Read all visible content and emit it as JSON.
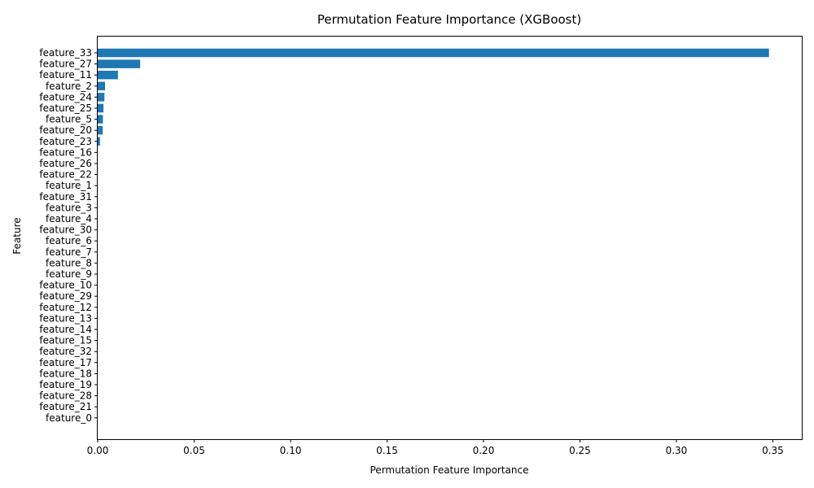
{
  "chart_data": {
    "type": "bar",
    "orientation": "horizontal",
    "title": "Permutation Feature Importance (XGBoost)",
    "xlabel": "Permutation Feature Importance",
    "ylabel": "Feature",
    "xlim": [
      0,
      0.365
    ],
    "xticks": [
      "0.00",
      "0.05",
      "0.10",
      "0.15",
      "0.20",
      "0.25",
      "0.30",
      "0.35"
    ],
    "xtick_values": [
      0,
      0.05,
      0.1,
      0.15,
      0.2,
      0.25,
      0.3,
      0.35
    ],
    "color": "#1f77b4",
    "categories": [
      "feature_33",
      "feature_27",
      "feature_11",
      "feature_2",
      "feature_24",
      "feature_25",
      "feature_5",
      "feature_20",
      "feature_23",
      "feature_16",
      "feature_26",
      "feature_22",
      "feature_1",
      "feature_31",
      "feature_3",
      "feature_4",
      "feature_30",
      "feature_6",
      "feature_7",
      "feature_8",
      "feature_9",
      "feature_10",
      "feature_29",
      "feature_12",
      "feature_13",
      "feature_14",
      "feature_15",
      "feature_32",
      "feature_17",
      "feature_18",
      "feature_19",
      "feature_28",
      "feature_21",
      "feature_0"
    ],
    "values": [
      0.348,
      0.022,
      0.0105,
      0.0038,
      0.0035,
      0.003,
      0.0027,
      0.0026,
      0.0012,
      0,
      0,
      0,
      0,
      0,
      0,
      0,
      0,
      0,
      0,
      0,
      0,
      0,
      0,
      0,
      0,
      0,
      0,
      0,
      0,
      0,
      0,
      0,
      0,
      0
    ]
  }
}
